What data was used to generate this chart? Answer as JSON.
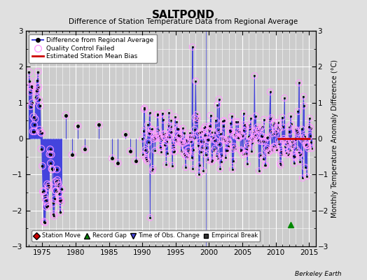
{
  "title": "SALTPOND",
  "subtitle": "Difference of Station Temperature Data from Regional Average",
  "ylabel": "Monthly Temperature Anomaly Difference (°C)",
  "xlim": [
    1972.5,
    2016
  ],
  "ylim": [
    -3,
    3
  ],
  "yticks": [
    -3,
    -2,
    -1,
    0,
    1,
    2,
    3
  ],
  "xticks": [
    1975,
    1980,
    1985,
    1990,
    1995,
    2000,
    2005,
    2010,
    2015
  ],
  "bg_color": "#e0e0e0",
  "plot_bg_color": "#cccccc",
  "grid_color": "#ffffff",
  "line_color": "#4444dd",
  "dot_color": "#000000",
  "qc_circle_color": "#ff99ff",
  "bias_color": "#cc0000",
  "watermark": "Berkeley Earth",
  "record_gap_x": 2012.3,
  "record_gap_y": -2.4,
  "time_obs_change_x": 1999.5,
  "time_obs_change_y": -2.98,
  "bias_x_start": 2010.3,
  "bias_x_end": 2015.2,
  "bias_y": 0.0
}
